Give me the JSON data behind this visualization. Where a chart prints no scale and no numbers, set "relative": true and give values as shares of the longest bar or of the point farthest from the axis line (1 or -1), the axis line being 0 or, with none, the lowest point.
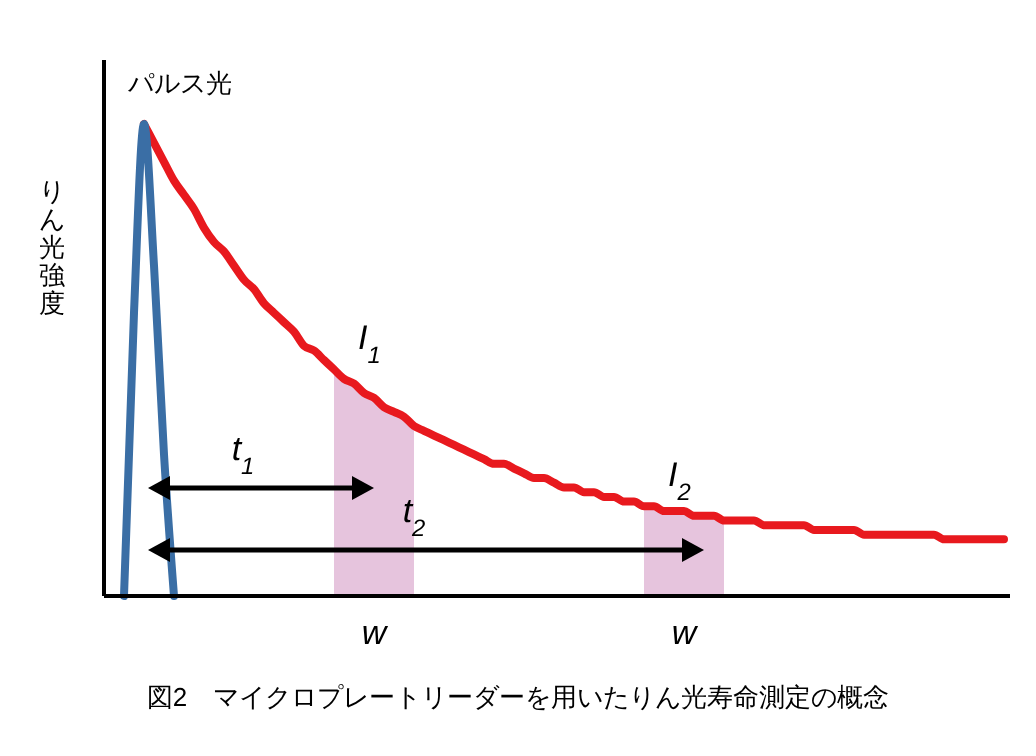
{
  "chart_data": {
    "type": "line",
    "relative": true,
    "title": "図2　マイクロプレートリーダーを用いたりん光寿命測定の概念",
    "ylabel": "りん光強度",
    "categories": [
      null,
      null,
      null,
      null,
      null,
      null,
      null,
      null,
      null,
      null,
      null,
      null,
      null,
      null,
      null,
      null,
      null,
      null,
      null,
      null,
      null,
      null,
      null,
      null,
      null,
      null,
      null,
      null,
      null,
      null,
      null,
      null,
      null,
      null,
      null,
      null,
      null,
      null,
      null,
      null,
      null,
      null,
      null,
      null,
      null,
      null,
      null,
      null,
      null,
      null,
      null,
      null,
      null,
      null,
      null,
      null,
      null,
      null,
      null,
      null,
      null,
      null,
      null,
      null,
      null,
      null,
      null,
      null,
      null,
      null,
      null,
      null,
      null,
      null,
      null,
      null,
      null,
      null,
      null,
      null,
      null,
      null,
      null,
      null,
      null,
      null,
      null,
      null,
      null,
      null,
      null
    ],
    "series": [
      {
        "type": "area",
        "color": "#e6c4dd",
        "values": [
          null,
          null,
          null,
          null,
          null,
          null,
          null,
          null,
          null,
          null,
          null,
          null,
          null,
          null,
          null,
          null,
          null,
          null,
          null,
          null,
          null,
          null,
          null,
          0.48,
          0.46,
          0.45,
          0.43,
          0.42,
          0.4,
          0.39,
          0.38,
          0.36,
          null,
          null,
          null,
          null,
          null,
          null,
          null,
          null,
          null,
          null,
          null,
          null,
          null,
          null,
          null,
          null,
          null,
          null,
          null,
          null,
          null,
          null,
          null,
          null,
          null,
          null,
          null,
          null,
          null,
          null,
          null,
          null,
          null,
          null,
          null,
          null,
          null,
          null,
          null,
          null,
          null,
          null,
          null,
          null,
          null,
          null,
          null,
          null,
          null,
          null,
          null,
          null,
          null,
          null,
          null,
          null,
          null,
          null,
          null
        ]
      },
      {
        "type": "area",
        "color": "#e6c4dd",
        "values": [
          null,
          null,
          null,
          null,
          null,
          null,
          null,
          null,
          null,
          null,
          null,
          null,
          null,
          null,
          null,
          null,
          null,
          null,
          null,
          null,
          null,
          null,
          null,
          null,
          null,
          null,
          null,
          null,
          null,
          null,
          null,
          null,
          null,
          null,
          null,
          null,
          null,
          null,
          null,
          null,
          null,
          null,
          null,
          null,
          null,
          null,
          null,
          null,
          null,
          null,
          null,
          null,
          null,
          null,
          0.19,
          0.19,
          0.18,
          0.18,
          0.18,
          0.17,
          0.17,
          0.17,
          0.16,
          null,
          null,
          null,
          null,
          null,
          null,
          null,
          null,
          null,
          null,
          null,
          null,
          null,
          null,
          null,
          null,
          null,
          null,
          null,
          null,
          null,
          null,
          null,
          null,
          null,
          null,
          null,
          null
        ]
      },
      {
        "color": "#e8191e",
        "values": [
          null,
          null,
          null,
          null,
          1.0,
          0.96,
          0.92,
          0.88,
          0.85,
          0.82,
          0.78,
          0.75,
          0.73,
          0.7,
          0.67,
          0.65,
          0.62,
          0.6,
          0.58,
          0.56,
          0.53,
          0.52,
          0.5,
          0.48,
          0.46,
          0.45,
          0.43,
          0.42,
          0.4,
          0.39,
          0.38,
          0.36,
          0.35,
          0.34,
          0.33,
          0.32,
          0.31,
          0.3,
          0.29,
          0.28,
          0.28,
          0.27,
          0.26,
          0.25,
          0.25,
          0.24,
          0.23,
          0.23,
          0.22,
          0.22,
          0.21,
          0.21,
          0.2,
          0.2,
          0.19,
          0.19,
          0.18,
          0.18,
          0.18,
          0.17,
          0.17,
          0.17,
          0.16,
          0.16,
          0.16,
          0.16,
          0.15,
          0.15,
          0.15,
          0.15,
          0.15,
          0.14,
          0.14,
          0.14,
          0.14,
          0.14,
          0.13,
          0.13,
          0.13,
          0.13,
          0.13,
          0.13,
          0.13,
          0.13,
          0.12,
          0.12,
          0.12,
          0.12,
          0.12,
          0.12,
          0.12
        ]
      },
      {
        "color": "#3a6ea5",
        "values": [
          null,
          null,
          0,
          0.6,
          1.0,
          0.7,
          0.3,
          0,
          null,
          null,
          null,
          null,
          null,
          null,
          null,
          null,
          null,
          null,
          null,
          null,
          null,
          null,
          null,
          null,
          null,
          null,
          null,
          null,
          null,
          null,
          null,
          null,
          null,
          null,
          null,
          null,
          null,
          null,
          null,
          null,
          null,
          null,
          null,
          null,
          null,
          null,
          null,
          null,
          null,
          null,
          null,
          null,
          null,
          null,
          null,
          null,
          null,
          null,
          null,
          null,
          null,
          null,
          null,
          null,
          null,
          null,
          null,
          null,
          null,
          null,
          null,
          null,
          null,
          null,
          null,
          null,
          null,
          null,
          null,
          null,
          null,
          null,
          null,
          null,
          null,
          null,
          null,
          null,
          null,
          null,
          null
        ]
      }
    ],
    "annotations": [
      "パルス光",
      "I$_{1}$",
      "I$_{2}$",
      "t$_{1}$",
      "t$_{2}$",
      "w",
      "w"
    ]
  }
}
